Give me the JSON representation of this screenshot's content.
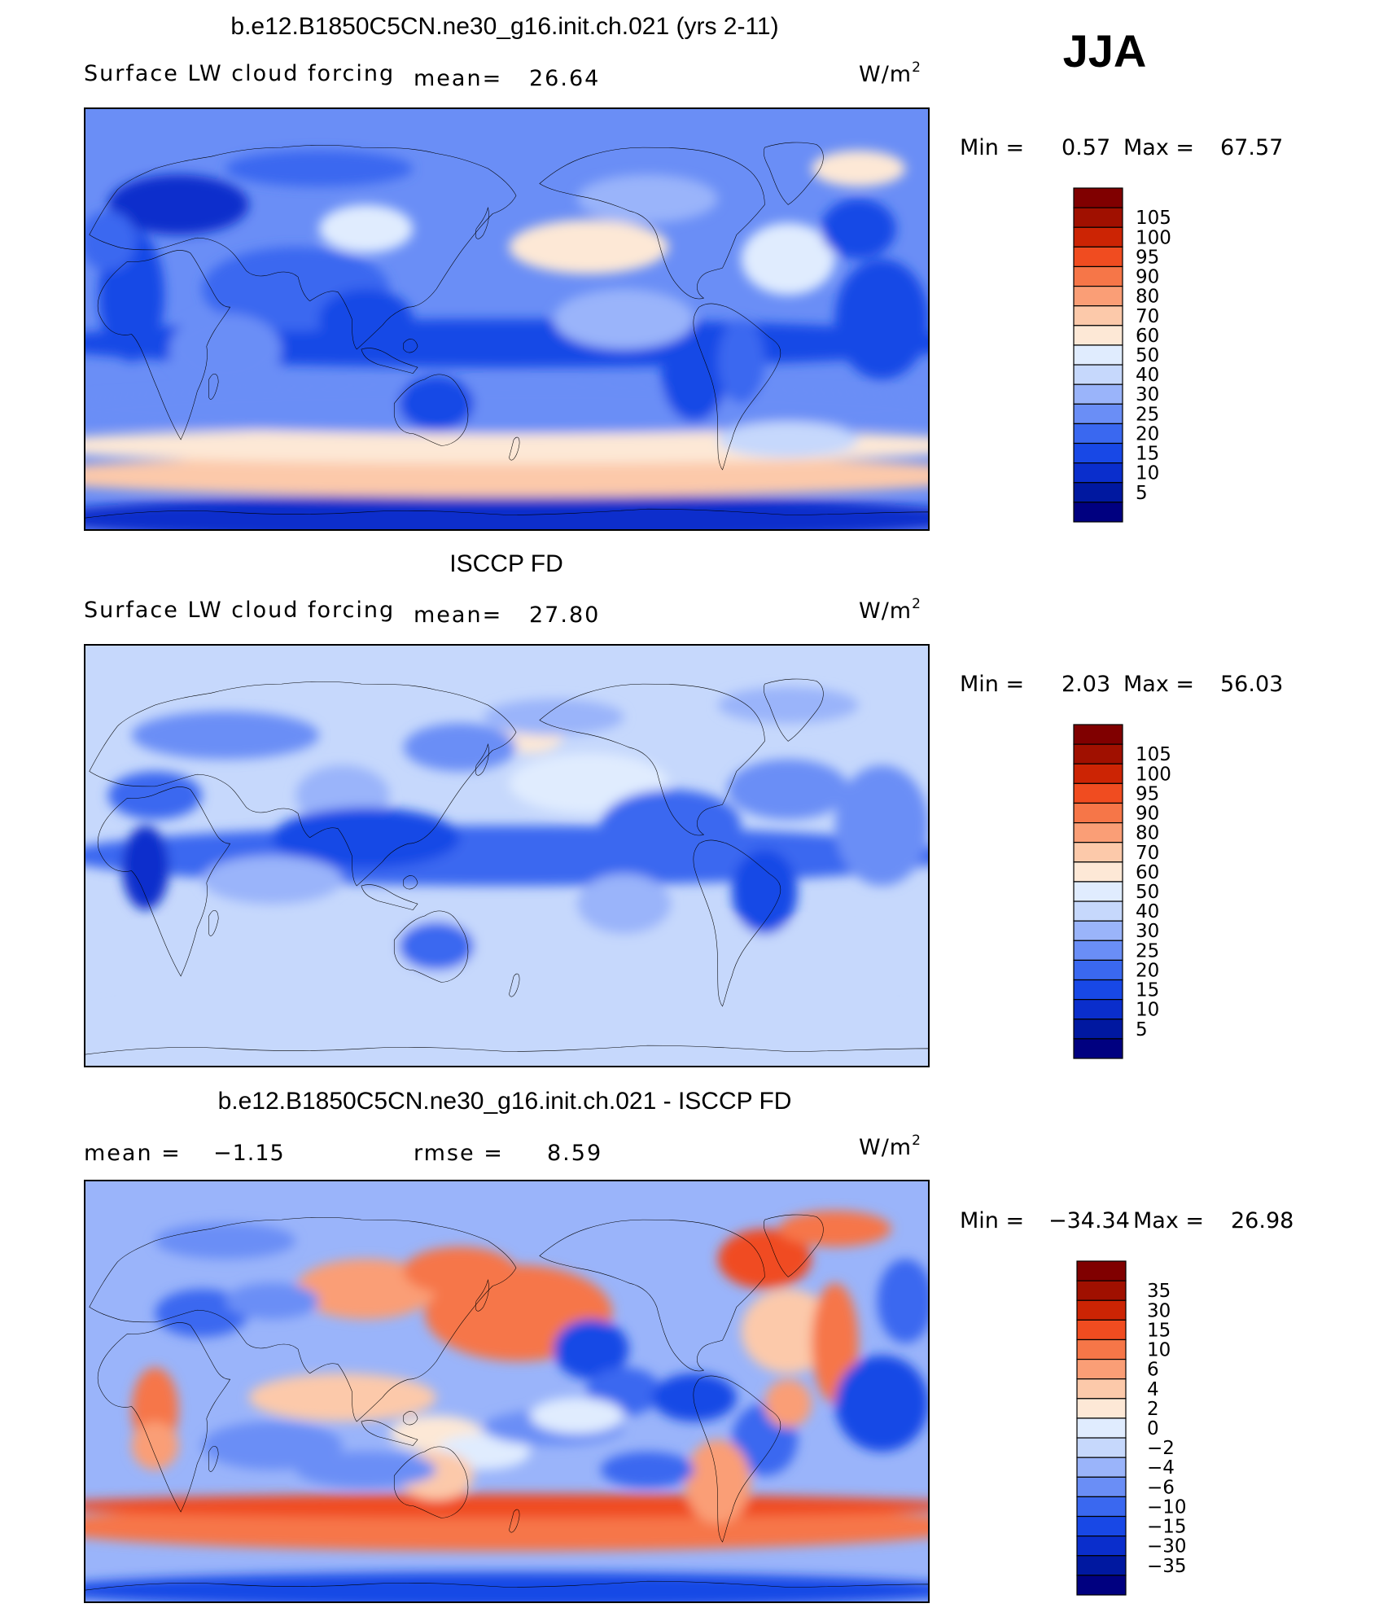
{
  "season": "JJA",
  "units_base": "W/m",
  "units_sup": "2",
  "colors": {
    "abs_scale": [
      "#000080",
      "#0018a0",
      "#0a2ecc",
      "#1848e6",
      "#3a68f0",
      "#6a8ef6",
      "#9ab4fa",
      "#c6d8fc",
      "#e0ecfe",
      "#fde8d6",
      "#fcc9aa",
      "#fa9e76",
      "#f67648",
      "#f04c20",
      "#cc2404",
      "#a01000",
      "#800000"
    ],
    "diff_scale": [
      "#000080",
      "#0018a0",
      "#0a2ecc",
      "#1848e6",
      "#3a68f0",
      "#6a8ef6",
      "#9ab4fa",
      "#c6d8fc",
      "#e0ecfe",
      "#fde8d6",
      "#fcc9aa",
      "#fa9e76",
      "#f67648",
      "#f04c20",
      "#cc2404",
      "#a01000",
      "#800000"
    ]
  },
  "chart_data": [
    {
      "type": "heatmap",
      "title": "b.e12.B1850C5CN.ne30_g16.init.ch.021 (yrs 2-11)",
      "variable": "Surface LW cloud forcing",
      "mean_label": "mean=",
      "mean_value": "26.64",
      "min_label": "Min =",
      "min_value": "0.57",
      "max_label": "Max =",
      "max_value": "67.57",
      "mean": 26.64,
      "min": 0.57,
      "max": 67.57,
      "colorbar_labels": [
        "105",
        "100",
        "95",
        "90",
        "80",
        "70",
        "60",
        "50",
        "40",
        "30",
        "25",
        "20",
        "15",
        "10",
        "5"
      ],
      "field": "model"
    },
    {
      "type": "heatmap",
      "title": "ISCCP FD",
      "variable": "Surface LW cloud forcing",
      "mean_label": "mean=",
      "mean_value": "27.80",
      "min_label": "Min =",
      "min_value": "2.03",
      "max_label": "Max =",
      "max_value": "56.03",
      "mean": 27.8,
      "min": 2.03,
      "max": 56.03,
      "colorbar_labels": [
        "105",
        "100",
        "95",
        "90",
        "80",
        "70",
        "60",
        "50",
        "40",
        "30",
        "25",
        "20",
        "15",
        "10",
        "5"
      ],
      "field": "obs"
    },
    {
      "type": "heatmap",
      "title": "b.e12.B1850C5CN.ne30_g16.init.ch.021 - ISCCP FD",
      "mean_label": "mean =",
      "mean_value": "−1.15",
      "rmse_label": "rmse =",
      "rmse_value": "8.59",
      "min_label": "Min =",
      "min_value": "−34.34",
      "max_label": "Max =",
      "max_value": "26.98",
      "mean": -1.15,
      "rmse": 8.59,
      "min": -34.34,
      "max": 26.98,
      "colorbar_labels": [
        "35",
        "30",
        "15",
        "10",
        "6",
        "4",
        "2",
        "0",
        "−2",
        "−4",
        "−6",
        "−10",
        "−15",
        "−30",
        "−35"
      ],
      "field": "diff"
    }
  ]
}
